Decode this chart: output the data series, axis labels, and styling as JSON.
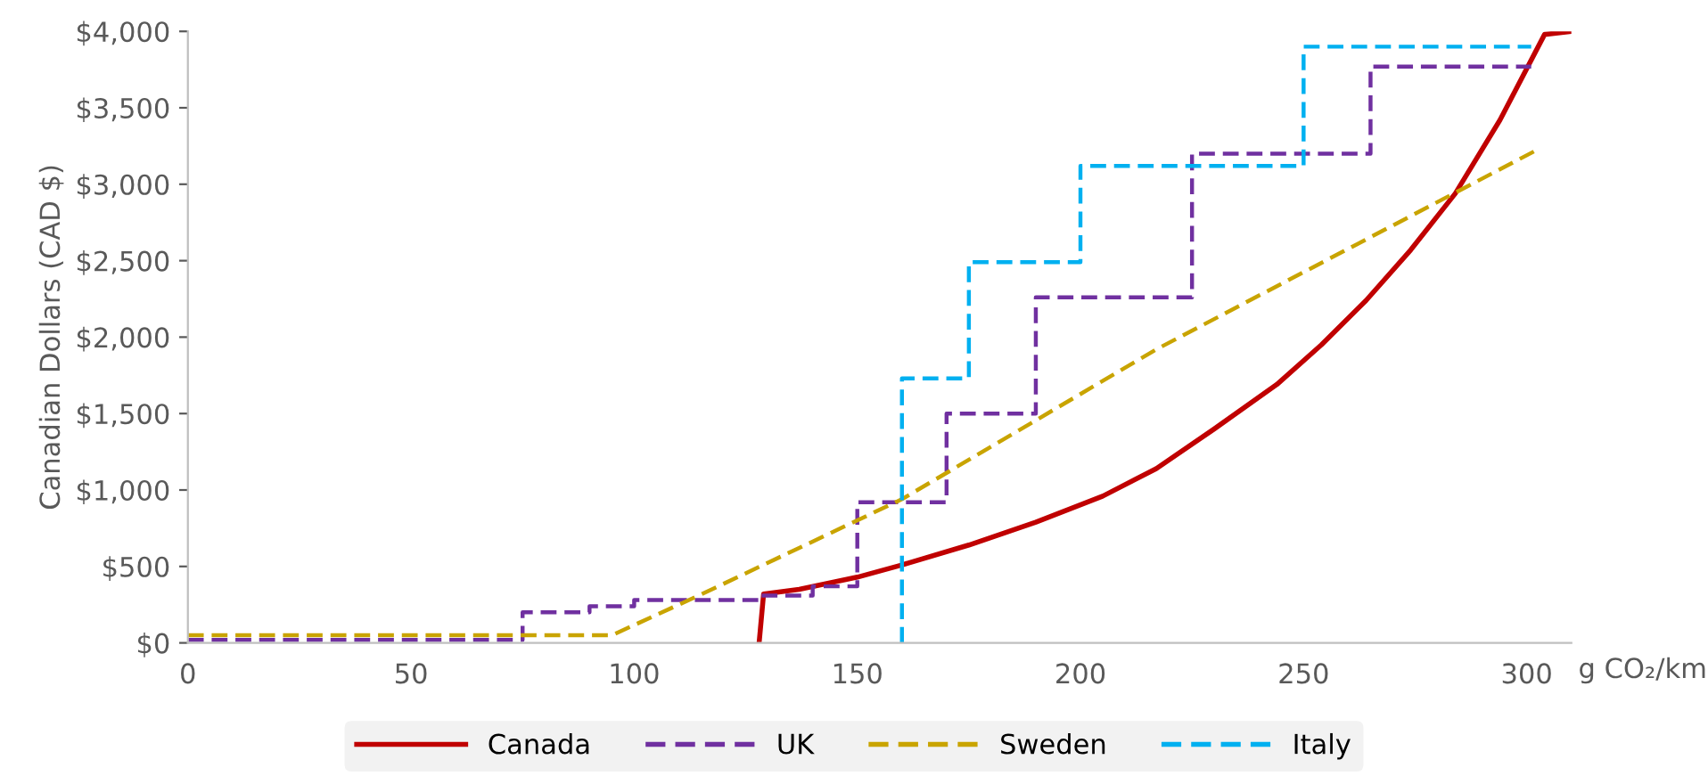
{
  "chart_data": {
    "type": "line",
    "xlabel": "g CO₂/km",
    "ylabel": "Canadian Dollars (CAD $)",
    "xlim": [
      0,
      310
    ],
    "xticks": [
      0,
      50,
      100,
      150,
      200,
      250,
      300
    ],
    "ylim": [
      0,
      4000
    ],
    "yticks": [
      {
        "value": 0,
        "label": "$0"
      },
      {
        "value": 500,
        "label": "$500"
      },
      {
        "value": 1000,
        "label": "$1,000"
      },
      {
        "value": 1500,
        "label": "$1,500"
      },
      {
        "value": 2000,
        "label": "$2,000"
      },
      {
        "value": 2500,
        "label": "$2,500"
      },
      {
        "value": 3000,
        "label": "$3,000"
      },
      {
        "value": 3500,
        "label": "$3,500"
      },
      {
        "value": 4000,
        "label": "$4,000"
      }
    ],
    "grid": false,
    "legend": "bottom",
    "marker": "none",
    "series": [
      {
        "name": "Canada",
        "color": "#c00000",
        "line_style": "solid",
        "x": [
          128,
          129,
          137,
          150,
          160,
          175,
          190,
          205,
          217,
          230,
          244,
          254,
          264,
          274,
          284,
          294,
          304,
          310
        ],
        "values": [
          0,
          320,
          350,
          430,
          510,
          640,
          790,
          960,
          1140,
          1400,
          1690,
          1950,
          2240,
          2570,
          2940,
          3420,
          3980,
          4000
        ]
      },
      {
        "name": "UK",
        "color": "#7030a0",
        "type": "step",
        "line_style": "dashed",
        "x": [
          0,
          75,
          90,
          100,
          128,
          140,
          150,
          170,
          190,
          225,
          265,
          301
        ],
        "values": [
          20,
          200,
          240,
          280,
          310,
          370,
          920,
          1500,
          2260,
          3200,
          3770,
          3770
        ]
      },
      {
        "name": "Sweden",
        "color": "#c9a400",
        "line_style": "dashed",
        "x": [
          0,
          95,
          114.5,
          160,
          217,
          302
        ],
        "values": [
          50,
          50,
          310,
          940,
          1920,
          3220
        ]
      },
      {
        "name": "Italy",
        "color": "#00b0f0",
        "type": "step",
        "line_style": "dashed",
        "x": [
          160,
          160,
          175,
          200,
          250,
          301
        ],
        "values": [
          0,
          1730,
          2490,
          3120,
          3900,
          3900
        ]
      }
    ]
  }
}
